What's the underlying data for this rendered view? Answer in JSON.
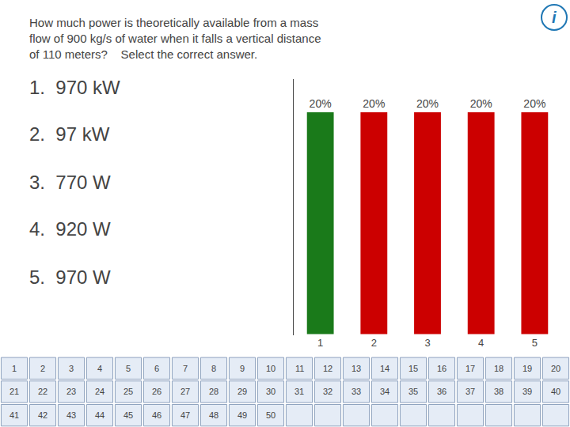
{
  "chart_data": {
    "type": "bar",
    "categories": [
      "1",
      "2",
      "3",
      "4",
      "5"
    ],
    "values": [
      20,
      20,
      20,
      20,
      20
    ],
    "value_labels": [
      "20%",
      "20%",
      "20%",
      "20%",
      "20%"
    ],
    "data_labels": true,
    "colors": [
      "#1A7A1A",
      "#CC0000",
      "#CC0000",
      "#CC0000",
      "#CC0000"
    ],
    "ylim": [
      -0.1,
      23
    ],
    "yticks": [],
    "tick_labels": "x",
    "grid": false,
    "annotations": {
      "question": [
        "How much power is theoretically available from a mass",
        "flow of 900 kg/s of water when it falls a vertical distance",
        "of 110 meters?    Select the correct answer."
      ],
      "answers": [
        "1.  970 kW",
        "2.  97 kW",
        "3.  770 W",
        "4.  920 W",
        "5.  970 W"
      ],
      "icon": "i",
      "grid": [
        [
          1,
          2,
          3,
          4,
          5,
          6,
          7,
          8,
          9,
          10,
          11,
          12,
          13,
          14,
          15,
          16,
          17,
          18,
          19,
          20
        ],
        [
          21,
          22,
          23,
          24,
          25,
          26,
          27,
          28,
          29,
          30,
          31,
          32,
          33,
          34,
          35,
          36,
          37,
          38,
          39,
          40
        ],
        [
          41,
          42,
          43,
          44,
          45,
          46,
          47,
          48,
          49,
          50
        ]
      ]
    }
  }
}
